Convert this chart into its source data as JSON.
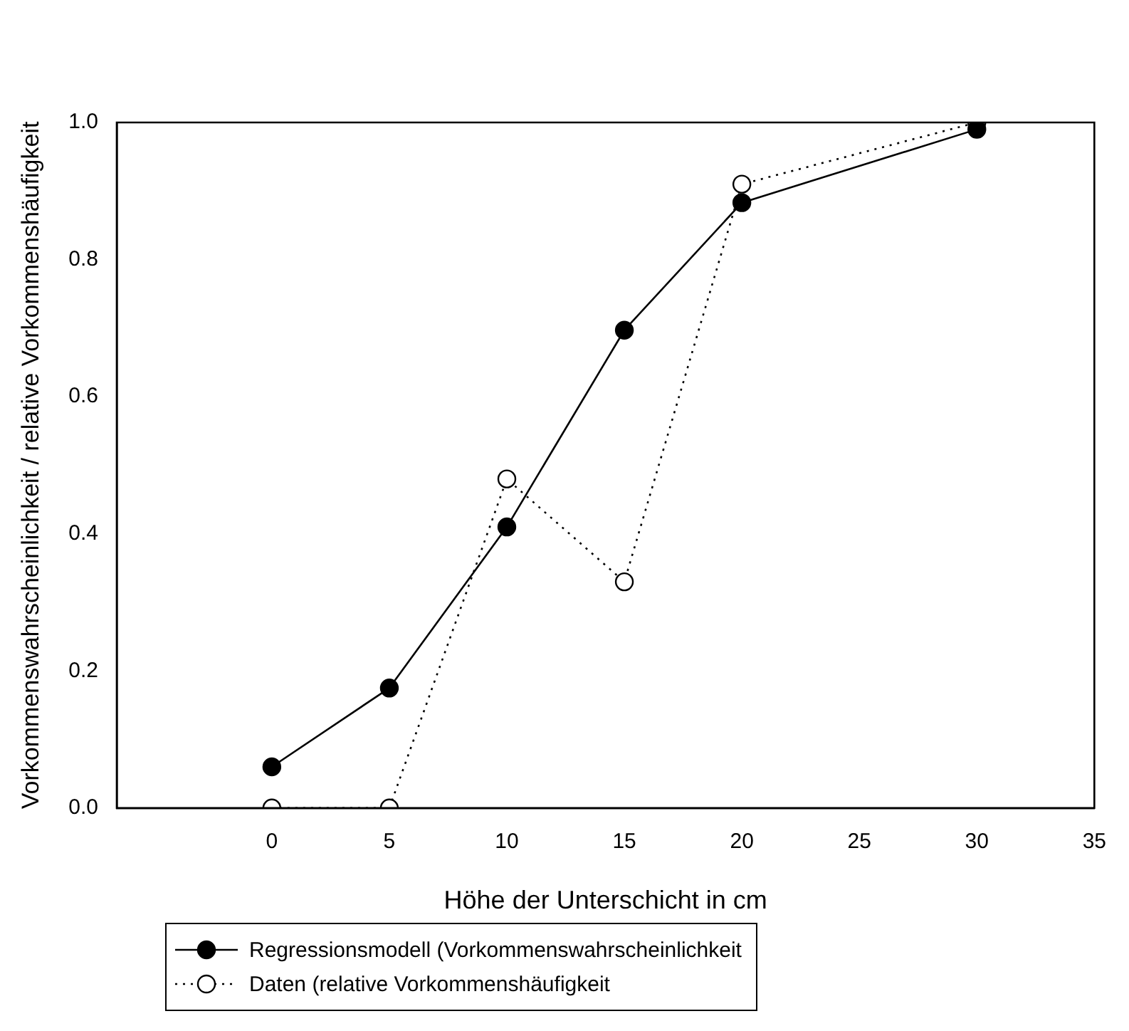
{
  "chart_data": {
    "type": "line",
    "xlabel": "Höhe der Unterschicht in cm",
    "ylabel": "Vorkommenswahrscheinlichkeit / relative Vorkommenshäufigkeit",
    "x": [
      0,
      5,
      10,
      15,
      20,
      30
    ],
    "xlim": [
      -6.6,
      35
    ],
    "xticks": [
      0,
      5,
      10,
      15,
      20,
      25,
      30,
      35
    ],
    "ylim": [
      0,
      1
    ],
    "yticks": [
      {
        "value": 0,
        "label": "0.0"
      },
      0.2,
      0.4,
      0.6,
      0.8,
      {
        "value": 1,
        "label": "1.0"
      }
    ],
    "grid": false,
    "legend": "bottom left",
    "marker": "circle",
    "series": [
      {
        "name": "Regressionsmodell (Vorkommenswahrscheinlichkeit",
        "color": "#000000",
        "line_style": "solid",
        "values": [
          0.06,
          0.175,
          0.41,
          0.697,
          0.883,
          0.99
        ]
      },
      {
        "name": "Daten (relative Vorkommenshäufigkeit",
        "color": "#000000",
        "line_style": "dotted",
        "values": [
          0,
          0,
          0.48,
          0.33,
          0.91,
          1.0
        ]
      }
    ]
  }
}
